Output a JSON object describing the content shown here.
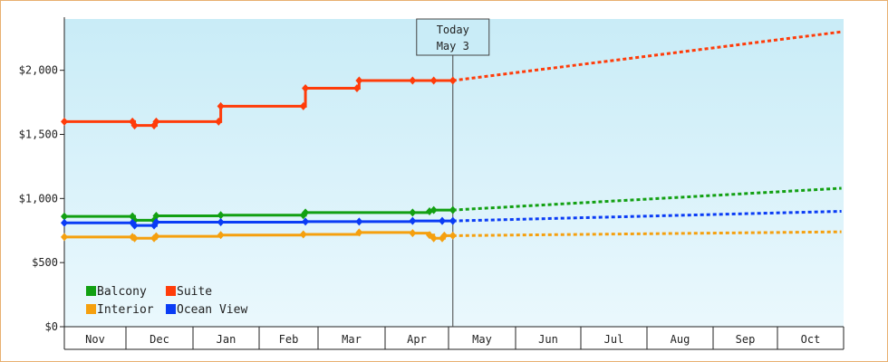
{
  "chart_data": {
    "type": "line",
    "title": "",
    "xlabel": "",
    "ylabel": "",
    "ylim": [
      0,
      2400
    ],
    "y_ticks": [
      {
        "value": 0,
        "label": "$0"
      },
      {
        "value": 500,
        "label": "$500"
      },
      {
        "value": 1000,
        "label": "$1,000"
      },
      {
        "value": 1500,
        "label": "$1,500"
      },
      {
        "value": 2000,
        "label": "$2,000"
      }
    ],
    "x_ticks": [
      "Nov",
      "Dec",
      "Jan",
      "Feb",
      "Mar",
      "Apr",
      "May",
      "Jun",
      "Jul",
      "Aug",
      "Sep",
      "Oct"
    ],
    "grid": false,
    "legend_position": "bottom-left",
    "today_marker": {
      "line1": "Today",
      "line2": "May 3"
    },
    "series": [
      {
        "name": "Balcony",
        "color": "#12a012",
        "history": [
          {
            "x": "Nov 1",
            "y": 860
          },
          {
            "x": "Dec 4",
            "y": 860
          },
          {
            "x": "Dec 5",
            "y": 830
          },
          {
            "x": "Dec 14",
            "y": 830
          },
          {
            "x": "Dec 15",
            "y": 865
          },
          {
            "x": "Jan 14",
            "y": 870
          },
          {
            "x": "Feb 22",
            "y": 870
          },
          {
            "x": "Feb 23",
            "y": 890
          },
          {
            "x": "Apr 14",
            "y": 890
          },
          {
            "x": "Apr 22",
            "y": 900
          },
          {
            "x": "Apr 24",
            "y": 910
          },
          {
            "x": "May 3",
            "y": 910
          }
        ],
        "forecast": [
          {
            "x": "May 3",
            "y": 910
          },
          {
            "x": "Oct 31",
            "y": 1080
          }
        ]
      },
      {
        "name": "Suite",
        "color": "#ff3c0a",
        "history": [
          {
            "x": "Nov 1",
            "y": 1600
          },
          {
            "x": "Dec 4",
            "y": 1600
          },
          {
            "x": "Dec 5",
            "y": 1570
          },
          {
            "x": "Dec 14",
            "y": 1570
          },
          {
            "x": "Dec 15",
            "y": 1600
          },
          {
            "x": "Jan 13",
            "y": 1600
          },
          {
            "x": "Jan 14",
            "y": 1720
          },
          {
            "x": "Feb 22",
            "y": 1720
          },
          {
            "x": "Feb 23",
            "y": 1860
          },
          {
            "x": "Mar 19",
            "y": 1860
          },
          {
            "x": "Mar 20",
            "y": 1920
          },
          {
            "x": "Apr 14",
            "y": 1920
          },
          {
            "x": "Apr 24",
            "y": 1920
          },
          {
            "x": "May 3",
            "y": 1920
          }
        ],
        "forecast": [
          {
            "x": "May 3",
            "y": 1920
          },
          {
            "x": "Oct 31",
            "y": 2300
          }
        ]
      },
      {
        "name": "Interior",
        "color": "#f5a00f",
        "history": [
          {
            "x": "Nov 1",
            "y": 700
          },
          {
            "x": "Dec 4",
            "y": 700
          },
          {
            "x": "Dec 5",
            "y": 690
          },
          {
            "x": "Dec 14",
            "y": 690
          },
          {
            "x": "Dec 15",
            "y": 705
          },
          {
            "x": "Jan 14",
            "y": 715
          },
          {
            "x": "Feb 22",
            "y": 720
          },
          {
            "x": "Mar 20",
            "y": 735
          },
          {
            "x": "Apr 14",
            "y": 730
          },
          {
            "x": "Apr 22",
            "y": 715
          },
          {
            "x": "Apr 24",
            "y": 690
          },
          {
            "x": "Apr 28",
            "y": 690
          },
          {
            "x": "Apr 29",
            "y": 710
          },
          {
            "x": "May 3",
            "y": 710
          }
        ],
        "forecast": [
          {
            "x": "May 3",
            "y": 710
          },
          {
            "x": "Oct 31",
            "y": 740
          }
        ]
      },
      {
        "name": "Ocean View",
        "color": "#0a3cf5",
        "history": [
          {
            "x": "Nov 1",
            "y": 810
          },
          {
            "x": "Dec 4",
            "y": 810
          },
          {
            "x": "Dec 5",
            "y": 790
          },
          {
            "x": "Dec 14",
            "y": 790
          },
          {
            "x": "Dec 15",
            "y": 815
          },
          {
            "x": "Jan 14",
            "y": 815
          },
          {
            "x": "Feb 23",
            "y": 820
          },
          {
            "x": "Mar 20",
            "y": 820
          },
          {
            "x": "Apr 14",
            "y": 825
          },
          {
            "x": "Apr 28",
            "y": 825
          },
          {
            "x": "May 3",
            "y": 825
          }
        ],
        "forecast": [
          {
            "x": "May 3",
            "y": 825
          },
          {
            "x": "Oct 31",
            "y": 900
          }
        ]
      }
    ]
  }
}
